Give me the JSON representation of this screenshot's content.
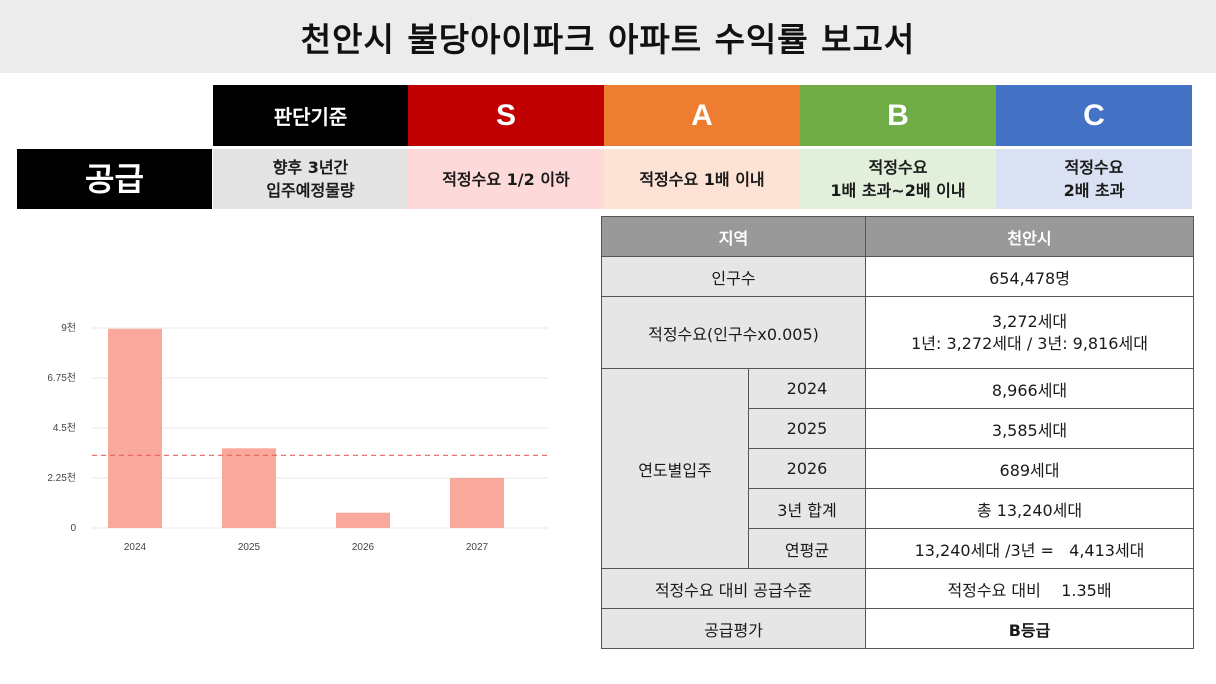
{
  "title": "천안시 불당아이파크 아파트 수익률 보고서",
  "criteria": {
    "header_label": "판단기준",
    "row_label": "공급",
    "basis_lines": [
      "향후 3년간",
      "입주예정물량"
    ],
    "grades": [
      {
        "grade": "S",
        "lines": [
          "적정수요 1/2 이하"
        ],
        "color": "#c00000",
        "bg": "#fdd9d9"
      },
      {
        "grade": "A",
        "lines": [
          "적정수요 1배 이내"
        ],
        "color": "#ed7d31",
        "bg": "#fde3d6"
      },
      {
        "grade": "B",
        "lines": [
          "적정수요",
          "1배 초과~2배 이내"
        ],
        "color": "#70ad47",
        "bg": "#e2efda"
      },
      {
        "grade": "C",
        "lines": [
          "적정수요",
          "2배 초과"
        ],
        "color": "#4472c4",
        "bg": "#d9e1f2"
      }
    ]
  },
  "chart_data": {
    "type": "bar",
    "categories": [
      "2024",
      "2025",
      "2026",
      "2027"
    ],
    "values": [
      8966,
      3585,
      689,
      2250
    ],
    "y_ticks": [
      "0",
      "2.25천",
      "4.5천",
      "6.75천",
      "9천"
    ],
    "ylim": [
      0,
      9000
    ],
    "reference_line": 3272,
    "bar_color": "#f8a99b",
    "reference_color": "#e8605a",
    "grid": true
  },
  "table": {
    "header": {
      "region": "지역",
      "city": "천안시"
    },
    "population": {
      "label": "인구수",
      "value": "654,478명"
    },
    "demand": {
      "label": "적정수요(인구수x0.005)",
      "value_line1": "3,272세대",
      "value_line2": "1년: 3,272세대 / 3년: 9,816세대"
    },
    "yearly": {
      "label": "연도별입주",
      "rows": [
        {
          "year": "2024",
          "value": "8,966세대"
        },
        {
          "year": "2025",
          "value": "3,585세대"
        },
        {
          "year": "2026",
          "value": "689세대"
        },
        {
          "year": "3년 합계",
          "value": "총 13,240세대"
        },
        {
          "year": "연평균",
          "value": "13,240세대 /3년 =   4,413세대"
        }
      ]
    },
    "supply_level": {
      "label": "적정수요 대비 공급수준",
      "value": "적정수요 대비    1.35배"
    },
    "evaluation": {
      "label": "공급평가",
      "value": "B등급"
    }
  }
}
